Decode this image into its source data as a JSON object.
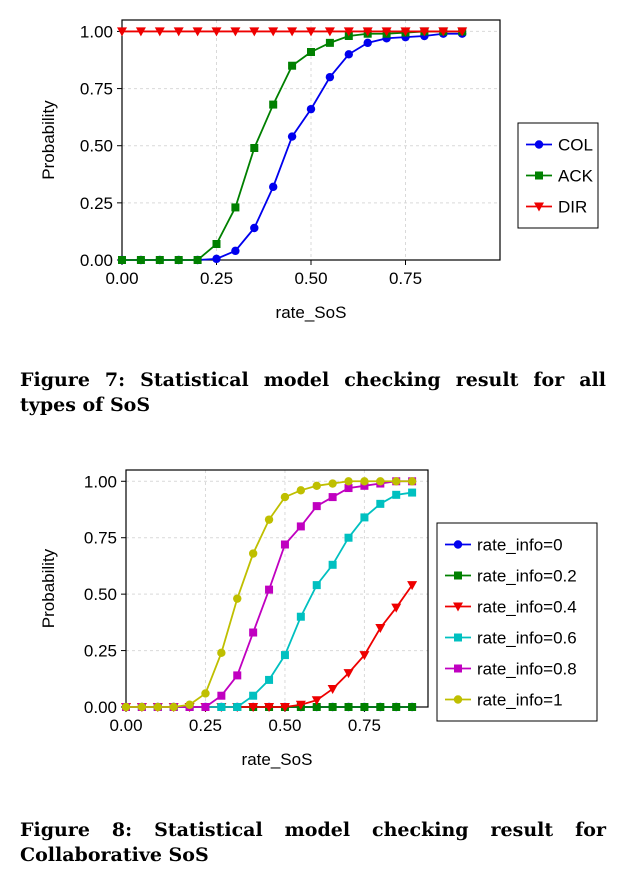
{
  "chart_data": [
    {
      "type": "line",
      "xlabel": "rate_SoS",
      "ylabel": "Probability",
      "xlim": [
        0,
        1.0
      ],
      "ylim": [
        0,
        1.05
      ],
      "xticks": [
        "0.00",
        "0.25",
        "0.50",
        "0.75"
      ],
      "yticks": [
        "0.00",
        "0.25",
        "0.50",
        "0.75",
        "1.00"
      ],
      "grid": true,
      "legend_position": "right",
      "x": [
        0.0,
        0.05,
        0.1,
        0.15,
        0.2,
        0.25,
        0.3,
        0.35,
        0.4,
        0.45,
        0.5,
        0.55,
        0.6,
        0.65,
        0.7,
        0.75,
        0.8,
        0.85,
        0.9
      ],
      "series": [
        {
          "name": "COL",
          "color": "#0000ee",
          "marker": "circle",
          "values": [
            0,
            0,
            0,
            0,
            0,
            0.005,
            0.04,
            0.14,
            0.32,
            0.54,
            0.66,
            0.8,
            0.9,
            0.95,
            0.97,
            0.975,
            0.98,
            0.99,
            0.99
          ]
        },
        {
          "name": "ACK",
          "color": "#008000",
          "marker": "square",
          "values": [
            0,
            0,
            0,
            0,
            0,
            0.07,
            0.23,
            0.49,
            0.68,
            0.85,
            0.91,
            0.95,
            0.98,
            0.99,
            0.99,
            0.995,
            1.0,
            1.0,
            1.0
          ]
        },
        {
          "name": "DIR",
          "color": "#ee0000",
          "marker": "triangle-down",
          "values": [
            1,
            1,
            1,
            1,
            1,
            1,
            1,
            1,
            1,
            1,
            1,
            1,
            1,
            1,
            1,
            1,
            1,
            1,
            1
          ]
        }
      ]
    },
    {
      "type": "line",
      "xlabel": "rate_SoS",
      "ylabel": "Probability",
      "xlim": [
        0,
        0.95
      ],
      "ylim": [
        0,
        1.05
      ],
      "xticks": [
        "0.00",
        "0.25",
        "0.50",
        "0.75"
      ],
      "yticks": [
        "0.00",
        "0.25",
        "0.50",
        "0.75",
        "1.00"
      ],
      "grid": true,
      "legend_position": "right",
      "x": [
        0.0,
        0.05,
        0.1,
        0.15,
        0.2,
        0.25,
        0.3,
        0.35,
        0.4,
        0.45,
        0.5,
        0.55,
        0.6,
        0.65,
        0.7,
        0.75,
        0.8,
        0.85,
        0.9
      ],
      "series": [
        {
          "name": "rate_info=0",
          "color": "#0000ee",
          "marker": "circle",
          "values": [
            0,
            0,
            0,
            0,
            0,
            0,
            0,
            0,
            0,
            0,
            0,
            0,
            0,
            0,
            0,
            0,
            0,
            0,
            0
          ]
        },
        {
          "name": "rate_info=0.2",
          "color": "#008000",
          "marker": "square",
          "values": [
            0,
            0,
            0,
            0,
            0,
            0,
            0,
            0,
            0,
            0,
            0,
            0,
            0,
            0,
            0,
            0,
            0,
            0,
            0
          ]
        },
        {
          "name": "rate_info=0.4",
          "color": "#ee0000",
          "marker": "triangle-down",
          "values": [
            0,
            0,
            0,
            0,
            0,
            0,
            0,
            0,
            0,
            0,
            0,
            0.01,
            0.03,
            0.08,
            0.15,
            0.23,
            0.35,
            0.44,
            0.54
          ]
        },
        {
          "name": "rate_info=0.6",
          "color": "#00c0c0",
          "marker": "square",
          "values": [
            0,
            0,
            0,
            0,
            0,
            0,
            0,
            0,
            0.05,
            0.12,
            0.23,
            0.4,
            0.54,
            0.63,
            0.75,
            0.84,
            0.9,
            0.94,
            0.95
          ]
        },
        {
          "name": "rate_info=0.8",
          "color": "#c000c0",
          "marker": "square",
          "values": [
            0,
            0,
            0,
            0,
            0,
            0,
            0.05,
            0.14,
            0.33,
            0.52,
            0.72,
            0.8,
            0.89,
            0.93,
            0.97,
            0.98,
            0.99,
            1.0,
            1.0
          ]
        },
        {
          "name": "rate_info=1",
          "color": "#bfbf00",
          "marker": "circle",
          "values": [
            0,
            0,
            0,
            0,
            0.01,
            0.06,
            0.24,
            0.48,
            0.68,
            0.83,
            0.93,
            0.96,
            0.98,
            0.99,
            1.0,
            1.0,
            1.0,
            1.0,
            1.0
          ]
        }
      ]
    }
  ],
  "captions": {
    "fig7": "Figure 7: Statistical model checking result for all types of SoS",
    "fig8": "Figure 8: Statistical model checking result for Collaborative SoS"
  }
}
